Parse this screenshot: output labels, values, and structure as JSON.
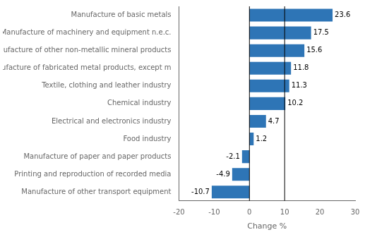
{
  "chart_data": {
    "type": "bar",
    "orientation": "horizontal",
    "categories": [
      "Manufacture of other transport equipment",
      "Printing and reproduction of recorded media",
      "Manufacture of paper and paper products",
      "Food industry",
      "Electrical and electronics industry",
      "Chemical industry",
      "Textile, clothing and leather industry",
      "Manufacture of fabricated metal products, except m",
      "Manufacture of other non-metallic mineral products",
      "Manufacture of machinery and equipment n.e.c.",
      "Manufacture of basic metals"
    ],
    "values": [
      -10.7,
      -4.9,
      -2.1,
      1.2,
      4.7,
      10.2,
      11.3,
      11.8,
      15.6,
      17.5,
      23.6
    ],
    "color": "#2E75B6",
    "xlabel": "Change %",
    "xlim": [
      -20,
      30
    ],
    "xticks": [
      -20,
      -10,
      0,
      10,
      20,
      30
    ],
    "vlines": [
      0,
      10
    ],
    "data_labels": true,
    "grid": false
  }
}
